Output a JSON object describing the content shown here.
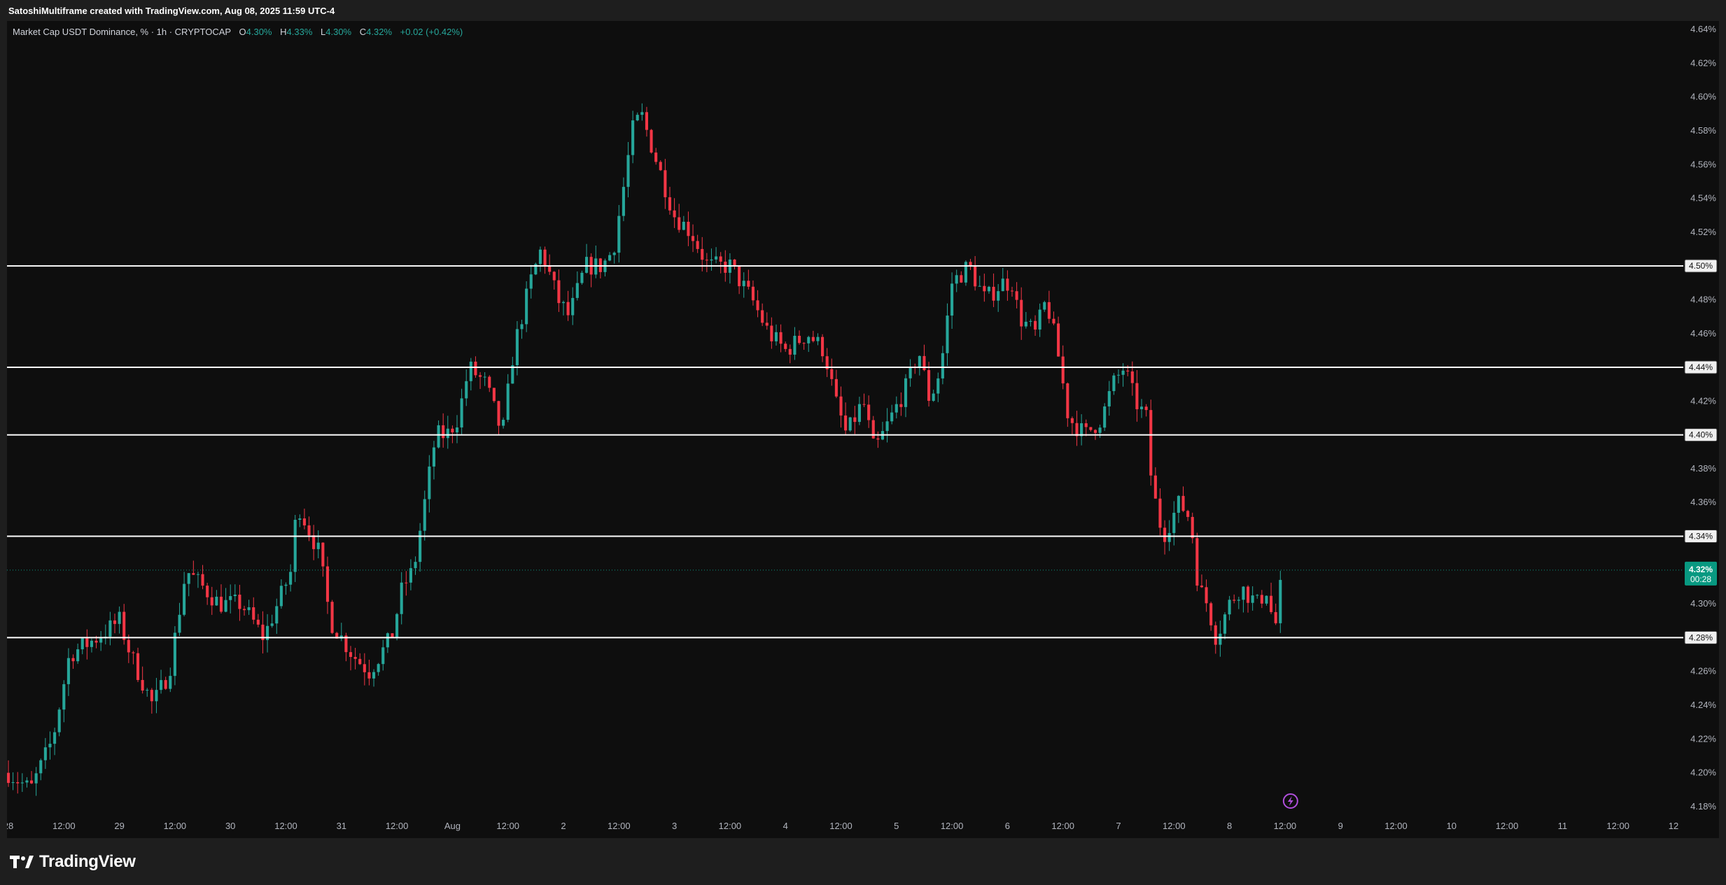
{
  "attribution": "SatoshiMultiframe created with TradingView.com, Aug 08, 2025 11:59 UTC-4",
  "legend": {
    "symbol": "Market Cap USDT Dominance, % · 1h · CRYPTOCAP",
    "open_label": "O",
    "open": "4.30%",
    "high_label": "H",
    "high": "4.33%",
    "low_label": "L",
    "low": "4.30%",
    "close_label": "C",
    "close": "4.32%",
    "change": "+0.02 (+0.42%)"
  },
  "brand": "TradingView",
  "colors": {
    "background": "#0e0e0e",
    "up": "#26a69a",
    "down": "#f23645",
    "levels": "#ffffff",
    "price_tag": "#089981",
    "grid": "#1a1a1a"
  },
  "icons": {
    "brand": "tradingview-logo-icon",
    "lightning": "lightning-icon"
  },
  "chart_data": {
    "type": "candlestick",
    "interval": "1h",
    "ylabel": "%",
    "ylim": [
      4.175,
      4.645
    ],
    "y_ticks": [
      "4.64%",
      "4.62%",
      "4.60%",
      "4.58%",
      "4.56%",
      "4.54%",
      "4.52%",
      "4.48%",
      "4.46%",
      "4.42%",
      "4.38%",
      "4.36%",
      "4.30%",
      "4.26%",
      "4.24%",
      "4.22%",
      "4.20%",
      "4.18%"
    ],
    "x_ticks": [
      "28",
      "12:00",
      "29",
      "12:00",
      "30",
      "12:00",
      "31",
      "12:00",
      "Aug",
      "12:00",
      "2",
      "12:00",
      "3",
      "12:00",
      "4",
      "12:00",
      "5",
      "12:00",
      "6",
      "12:00",
      "7",
      "12:00",
      "8",
      "12:00",
      "9",
      "12:00",
      "10",
      "12:00",
      "11",
      "12:00",
      "12"
    ],
    "x_tick_days": [
      0,
      0.5,
      1,
      1.5,
      2,
      2.5,
      3,
      3.5,
      4,
      4.5,
      5,
      5.5,
      6,
      6.5,
      7,
      7.5,
      8,
      8.5,
      9,
      9.5,
      10,
      10.5,
      11,
      11.5,
      12,
      12.5,
      13,
      13.5,
      14,
      14.5,
      15
    ],
    "horizontal_levels": [
      {
        "value": 4.5,
        "label": "4.50%"
      },
      {
        "value": 4.44,
        "label": "4.44%"
      },
      {
        "value": 4.4,
        "label": "4.40%"
      },
      {
        "value": 4.34,
        "label": "4.34%"
      },
      {
        "value": 4.28,
        "label": "4.28%"
      }
    ],
    "current_price": {
      "value": 4.32,
      "label": "4.32%",
      "countdown": "00:28"
    },
    "path_points_day_value": [
      [
        0,
        4.2
      ],
      [
        0.2,
        4.19
      ],
      [
        0.4,
        4.22
      ],
      [
        0.55,
        4.27
      ],
      [
        0.8,
        4.28
      ],
      [
        1.0,
        4.29
      ],
      [
        1.1,
        4.27
      ],
      [
        1.3,
        4.24
      ],
      [
        1.45,
        4.26
      ],
      [
        1.6,
        4.32
      ],
      [
        1.9,
        4.3
      ],
      [
        2.1,
        4.3
      ],
      [
        2.3,
        4.28
      ],
      [
        2.55,
        4.32
      ],
      [
        2.6,
        4.36
      ],
      [
        2.8,
        4.33
      ],
      [
        2.9,
        4.29
      ],
      [
        3.1,
        4.27
      ],
      [
        3.25,
        4.26
      ],
      [
        3.45,
        4.28
      ],
      [
        3.55,
        4.31
      ],
      [
        3.65,
        4.32
      ],
      [
        3.75,
        4.36
      ],
      [
        3.85,
        4.4
      ],
      [
        3.95,
        4.4
      ],
      [
        4.05,
        4.41
      ],
      [
        4.15,
        4.44
      ],
      [
        4.3,
        4.43
      ],
      [
        4.45,
        4.4
      ],
      [
        4.55,
        4.45
      ],
      [
        4.7,
        4.49
      ],
      [
        4.8,
        4.51
      ],
      [
        4.95,
        4.48
      ],
      [
        5.05,
        4.47
      ],
      [
        5.2,
        4.5
      ],
      [
        5.35,
        4.5
      ],
      [
        5.45,
        4.51
      ],
      [
        5.55,
        4.55
      ],
      [
        5.62,
        4.58
      ],
      [
        5.7,
        4.59
      ],
      [
        5.8,
        4.57
      ],
      [
        5.9,
        4.55
      ],
      [
        6.0,
        4.53
      ],
      [
        6.15,
        4.52
      ],
      [
        6.3,
        4.5
      ],
      [
        6.5,
        4.5
      ],
      [
        6.7,
        4.48
      ],
      [
        6.85,
        4.46
      ],
      [
        7.0,
        4.45
      ],
      [
        7.2,
        4.46
      ],
      [
        7.35,
        4.45
      ],
      [
        7.45,
        4.42
      ],
      [
        7.55,
        4.4
      ],
      [
        7.7,
        4.42
      ],
      [
        7.8,
        4.39
      ],
      [
        7.95,
        4.41
      ],
      [
        8.1,
        4.43
      ],
      [
        8.2,
        4.45
      ],
      [
        8.3,
        4.42
      ],
      [
        8.4,
        4.44
      ],
      [
        8.5,
        4.49
      ],
      [
        8.65,
        4.5
      ],
      [
        8.8,
        4.48
      ],
      [
        8.95,
        4.49
      ],
      [
        9.05,
        4.49
      ],
      [
        9.1,
        4.47
      ],
      [
        9.25,
        4.46
      ],
      [
        9.35,
        4.48
      ],
      [
        9.45,
        4.45
      ],
      [
        9.55,
        4.41
      ],
      [
        9.7,
        4.4
      ],
      [
        9.85,
        4.41
      ],
      [
        9.95,
        4.43
      ],
      [
        10.05,
        4.44
      ],
      [
        10.15,
        4.42
      ],
      [
        10.25,
        4.41
      ],
      [
        10.3,
        4.37
      ],
      [
        10.4,
        4.34
      ],
      [
        10.55,
        4.36
      ],
      [
        10.65,
        4.35
      ],
      [
        10.72,
        4.31
      ],
      [
        10.8,
        4.3
      ],
      [
        10.88,
        4.28
      ],
      [
        11.0,
        4.3
      ],
      [
        11.1,
        4.31
      ],
      [
        11.25,
        4.3
      ],
      [
        11.35,
        4.31
      ],
      [
        11.4,
        4.28
      ],
      [
        11.48,
        4.32
      ]
    ]
  }
}
